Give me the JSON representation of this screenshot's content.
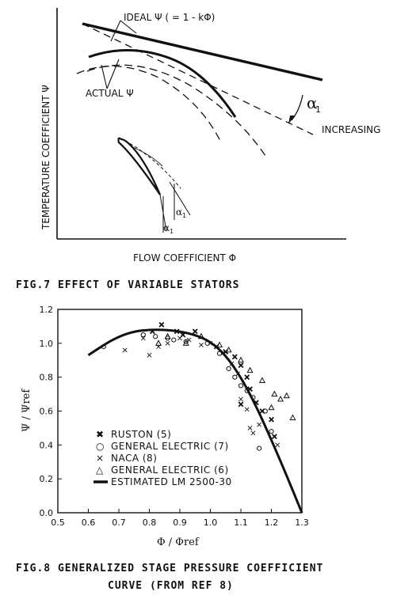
{
  "fig7": {
    "caption": "FIG.7  EFFECT OF VARIABLE STATORS",
    "label_ideal": "IDEAL Ψ ( = 1 - kΦ)",
    "label_actual": "ACTUAL Ψ",
    "label_alpha": "α",
    "label_alpha_sub": "1",
    "label_increasing": "INCREASING",
    "ylabel": "TEMPERATURE  COEFFICIENT  Ψ",
    "xlabel": "FLOW  COEFFICIENT  Φ"
  },
  "fig8": {
    "caption_line1": "FIG.8  GENERALIZED  STAGE  PRESSURE  COEFFICIENT",
    "caption_line2": "CURVE  (FROM REF 8)",
    "ylabel": "Ψ / Ψref",
    "xlabel": "Φ / Φref",
    "legend": [
      {
        "symbol": "✖",
        "label": "RUSTON (5)"
      },
      {
        "symbol": "○",
        "label": "GENERAL ELECTRIC (7)"
      },
      {
        "symbol": "×",
        "label": "NACA (8)"
      },
      {
        "symbol": "△",
        "label": "GENERAL ELECTRIC (6)"
      },
      {
        "symbol": "line",
        "label": "ESTIMATED LM 2500-30"
      }
    ]
  },
  "chart_data": {
    "type": "scatter",
    "xlabel": "Φ / Φref",
    "ylabel": "Ψ / Ψref",
    "xlim": [
      0.5,
      1.3
    ],
    "ylim": [
      0.0,
      1.2
    ],
    "xticks": [
      "0.5",
      "0.6",
      "0.7",
      "0.8",
      "0.9",
      "1.0",
      "1.1",
      "1.2",
      "1.3"
    ],
    "yticks": [
      "0.0",
      "0.2",
      "0.4",
      "0.6",
      "0.8",
      "1.0",
      "1.2"
    ],
    "series": [
      {
        "name": "RUSTON (5)",
        "marker": "x-bold",
        "points": [
          [
            0.81,
            1.07
          ],
          [
            0.84,
            1.11
          ],
          [
            0.89,
            1.07
          ],
          [
            0.91,
            1.05
          ],
          [
            0.95,
            1.07
          ],
          [
            1.02,
            0.98
          ],
          [
            1.05,
            0.95
          ],
          [
            1.08,
            0.92
          ],
          [
            1.1,
            0.87
          ],
          [
            1.12,
            0.8
          ],
          [
            1.13,
            0.73
          ],
          [
            1.15,
            0.65
          ],
          [
            1.17,
            0.6
          ],
          [
            1.2,
            0.55
          ],
          [
            1.21,
            0.45
          ],
          [
            1.1,
            0.64
          ]
        ]
      },
      {
        "name": "GENERAL ELECTRIC (7)",
        "marker": "circle",
        "points": [
          [
            0.65,
            0.98
          ],
          [
            0.78,
            1.05
          ],
          [
            0.82,
            1.04
          ],
          [
            0.86,
            1.03
          ],
          [
            0.88,
            1.02
          ],
          [
            0.92,
            1.01
          ],
          [
            0.99,
            1.0
          ],
          [
            1.03,
            0.94
          ],
          [
            1.06,
            0.85
          ],
          [
            1.08,
            0.8
          ],
          [
            1.1,
            0.75
          ],
          [
            1.12,
            0.72
          ],
          [
            1.14,
            0.68
          ],
          [
            1.18,
            0.6
          ],
          [
            1.2,
            0.48
          ],
          [
            1.16,
            0.38
          ]
        ]
      },
      {
        "name": "NACA (8)",
        "marker": "x",
        "points": [
          [
            0.72,
            0.96
          ],
          [
            0.78,
            1.03
          ],
          [
            0.8,
            0.93
          ],
          [
            0.83,
            0.98
          ],
          [
            0.86,
            1.0
          ],
          [
            0.9,
            1.03
          ],
          [
            0.93,
            1.02
          ],
          [
            0.97,
            0.99
          ],
          [
            1.0,
            1.0
          ],
          [
            1.04,
            0.94
          ],
          [
            1.07,
            0.88
          ],
          [
            1.09,
            0.82
          ],
          [
            1.1,
            0.67
          ],
          [
            1.12,
            0.61
          ],
          [
            1.13,
            0.5
          ],
          [
            1.14,
            0.47
          ],
          [
            1.16,
            0.52
          ],
          [
            1.22,
            0.4
          ]
        ]
      },
      {
        "name": "GENERAL ELECTRIC (6)",
        "marker": "triangle",
        "points": [
          [
            0.83,
            1.0
          ],
          [
            0.86,
            1.04
          ],
          [
            0.92,
            1.0
          ],
          [
            0.97,
            1.04
          ],
          [
            1.03,
            0.99
          ],
          [
            1.06,
            0.96
          ],
          [
            1.1,
            0.9
          ],
          [
            1.13,
            0.84
          ],
          [
            1.17,
            0.78
          ],
          [
            1.21,
            0.7
          ],
          [
            1.23,
            0.67
          ],
          [
            1.25,
            0.69
          ],
          [
            1.27,
            0.56
          ],
          [
            1.2,
            0.62
          ]
        ]
      },
      {
        "name": "ESTIMATED LM 2500-30",
        "marker": "line",
        "points": [
          [
            0.6,
            0.93
          ],
          [
            0.65,
            0.99
          ],
          [
            0.7,
            1.04
          ],
          [
            0.75,
            1.07
          ],
          [
            0.8,
            1.08
          ],
          [
            0.85,
            1.08
          ],
          [
            0.9,
            1.07
          ],
          [
            0.95,
            1.05
          ],
          [
            1.0,
            1.01
          ],
          [
            1.05,
            0.93
          ],
          [
            1.1,
            0.8
          ],
          [
            1.15,
            0.63
          ],
          [
            1.2,
            0.43
          ],
          [
            1.25,
            0.22
          ],
          [
            1.3,
            0.0
          ]
        ]
      }
    ]
  }
}
